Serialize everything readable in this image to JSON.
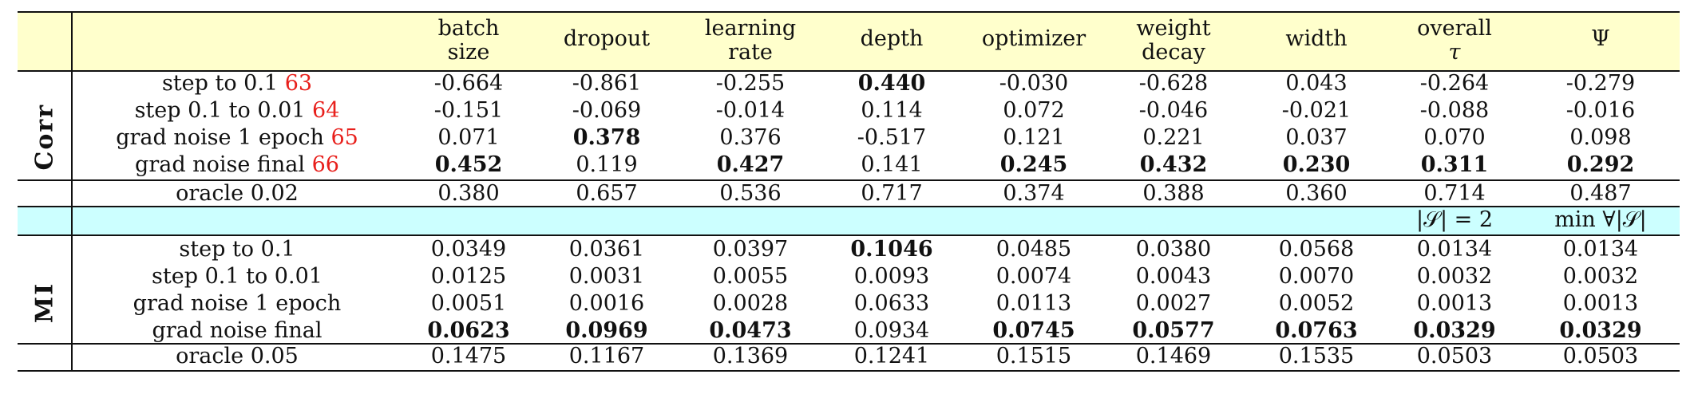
{
  "columns": [
    {
      "line1": "batch",
      "line2": "size"
    },
    {
      "line1": "dropout",
      "line2": ""
    },
    {
      "line1": "learning",
      "line2": "rate"
    },
    {
      "line1": "depth",
      "line2": ""
    },
    {
      "line1": "optimizer",
      "line2": ""
    },
    {
      "line1": "weight",
      "line2": "decay"
    },
    {
      "line1": "width",
      "line2": ""
    },
    {
      "line1": "overall",
      "line2": "τ"
    },
    {
      "line1": "Ψ",
      "line2": ""
    }
  ],
  "sections": [
    {
      "label": "Corr",
      "rows": [
        {
          "label": "step to 0.1 ",
          "ref": "63",
          "values": [
            "-0.664",
            "-0.861",
            "-0.255",
            "0.440",
            "-0.030",
            "-0.628",
            "0.043",
            "-0.264",
            "-0.279"
          ],
          "bold": [
            false,
            false,
            false,
            true,
            false,
            false,
            false,
            false,
            false
          ]
        },
        {
          "label": "step 0.1 to 0.01 ",
          "ref": "64",
          "values": [
            "-0.151",
            "-0.069",
            "-0.014",
            "0.114",
            "0.072",
            "-0.046",
            "-0.021",
            "-0.088",
            "-0.016"
          ],
          "bold": [
            false,
            false,
            false,
            false,
            false,
            false,
            false,
            false,
            false
          ]
        },
        {
          "label": "grad noise 1 epoch ",
          "ref": "65",
          "values": [
            "0.071",
            "0.378",
            "0.376",
            "-0.517",
            "0.121",
            "0.221",
            "0.037",
            "0.070",
            "0.098"
          ],
          "bold": [
            false,
            true,
            false,
            false,
            false,
            false,
            false,
            false,
            false
          ]
        },
        {
          "label": "grad noise final ",
          "ref": "66",
          "values": [
            "0.452",
            "0.119",
            "0.427",
            "0.141",
            "0.245",
            "0.432",
            "0.230",
            "0.311",
            "0.292"
          ],
          "bold": [
            true,
            false,
            true,
            false,
            true,
            true,
            true,
            true,
            true
          ]
        }
      ],
      "oracle": {
        "label": "oracle 0.02",
        "values": [
          "0.380",
          "0.657",
          "0.536",
          "0.717",
          "0.374",
          "0.388",
          "0.360",
          "0.714",
          "0.487"
        ]
      }
    },
    {
      "label": "MI",
      "subheader": [
        "|𝒮| = 2",
        "min ∀|𝒮|"
      ],
      "rows": [
        {
          "label": "step to 0.1",
          "ref": "",
          "values": [
            "0.0349",
            "0.0361",
            "0.0397",
            "0.1046",
            "0.0485",
            "0.0380",
            "0.0568",
            "0.0134",
            "0.0134"
          ],
          "bold": [
            false,
            false,
            false,
            true,
            false,
            false,
            false,
            false,
            false
          ]
        },
        {
          "label": "step 0.1 to 0.01",
          "ref": "",
          "values": [
            "0.0125",
            "0.0031",
            "0.0055",
            "0.0093",
            "0.0074",
            "0.0043",
            "0.0070",
            "0.0032",
            "0.0032"
          ],
          "bold": [
            false,
            false,
            false,
            false,
            false,
            false,
            false,
            false,
            false
          ]
        },
        {
          "label": "grad noise 1 epoch",
          "ref": "",
          "values": [
            "0.0051",
            "0.0016",
            "0.0028",
            "0.0633",
            "0.0113",
            "0.0027",
            "0.0052",
            "0.0013",
            "0.0013"
          ],
          "bold": [
            false,
            false,
            false,
            false,
            false,
            false,
            false,
            false,
            false
          ]
        },
        {
          "label": "grad noise final",
          "ref": "",
          "values": [
            "0.0623",
            "0.0969",
            "0.0473",
            "0.0934",
            "0.0745",
            "0.0577",
            "0.0763",
            "0.0329",
            "0.0329"
          ],
          "bold": [
            true,
            true,
            true,
            false,
            true,
            true,
            true,
            true,
            true
          ]
        }
      ],
      "oracle": {
        "label": "oracle 0.05",
        "values": [
          "0.1475",
          "0.1167",
          "0.1369",
          "0.1241",
          "0.1515",
          "0.1469",
          "0.1535",
          "0.0503",
          "0.0503"
        ]
      }
    }
  ],
  "colors": {
    "header_bg": "#ffffcc",
    "subheader_bg": "#ccffff",
    "ref": "#e8201c"
  }
}
